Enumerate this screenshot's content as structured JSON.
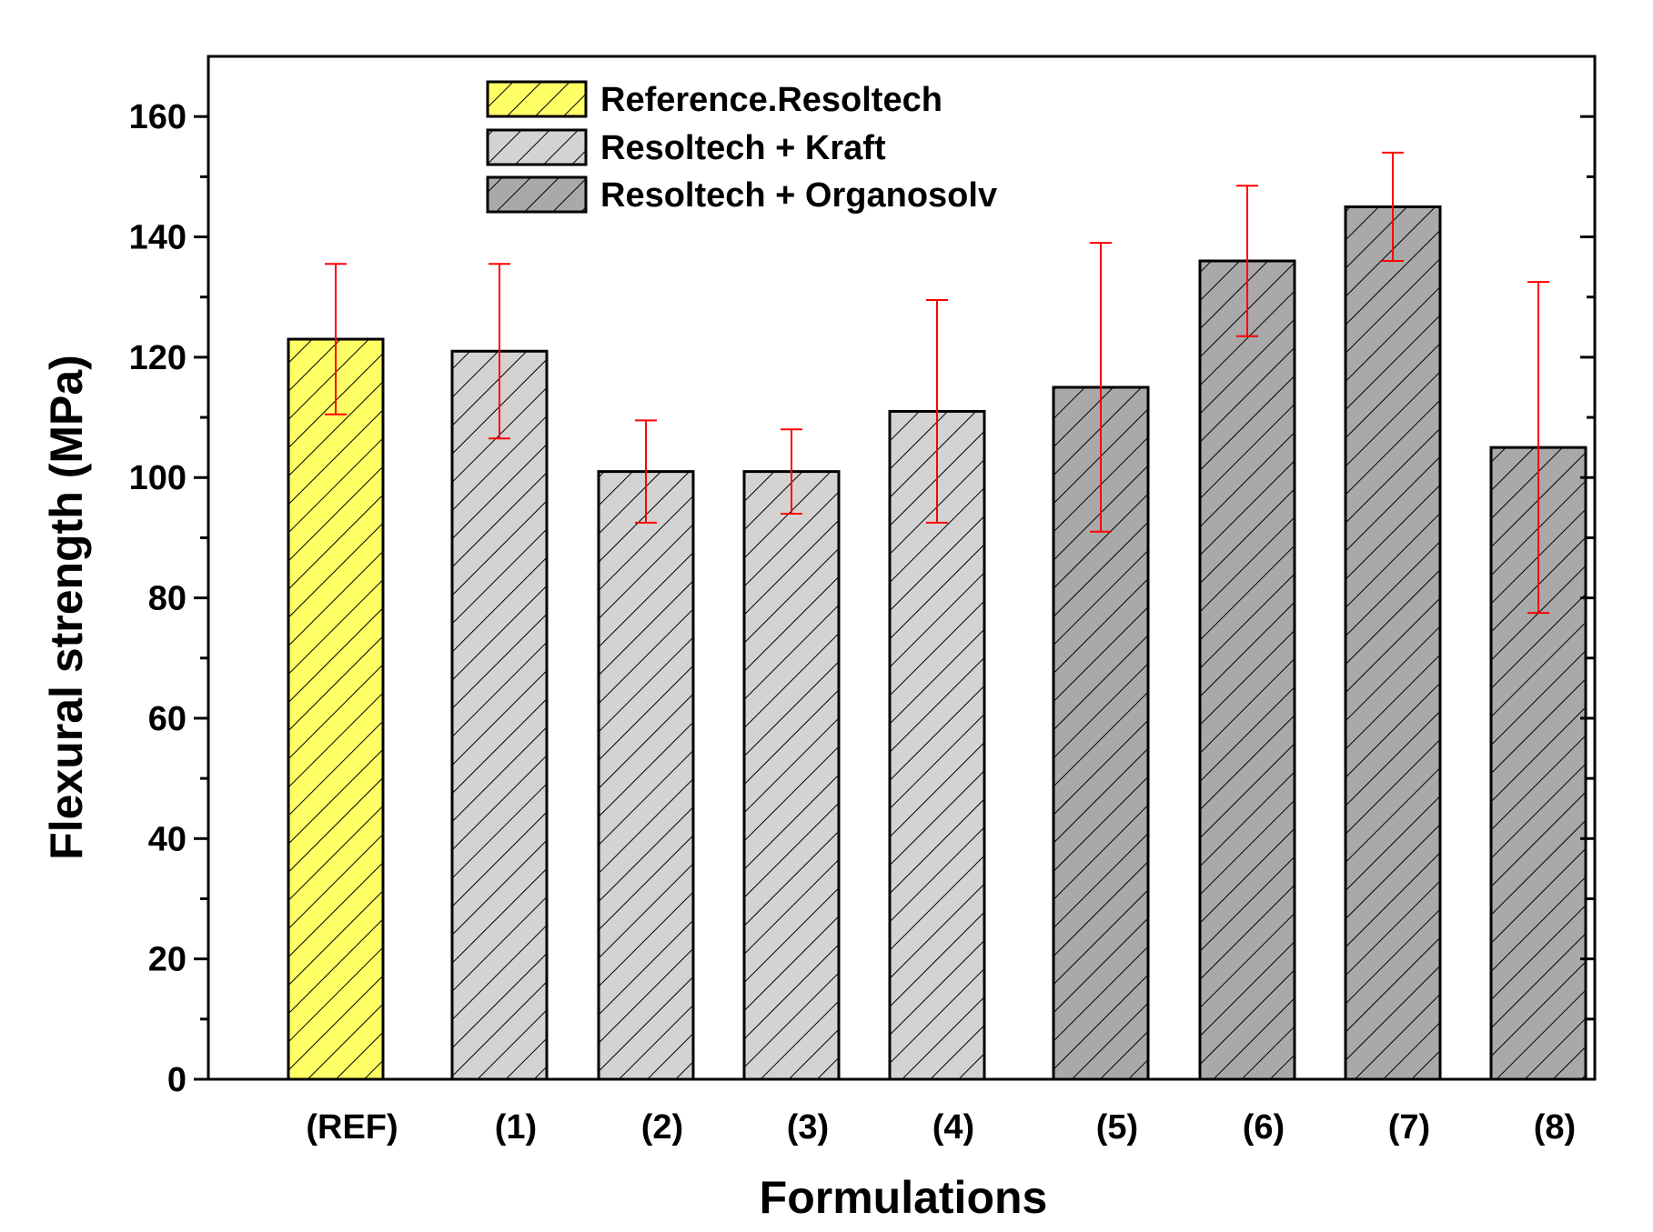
{
  "chart_data": {
    "type": "bar",
    "title": "",
    "xlabel": "Formulations",
    "ylabel": "Flexural strength (MPa)",
    "ylim": [
      0,
      170
    ],
    "yticks": [
      0,
      20,
      40,
      60,
      80,
      100,
      120,
      140,
      160
    ],
    "categories": [
      "(REF)",
      "(1)",
      "(2)",
      "(3)",
      "(4)",
      "(5)",
      "(6)",
      "(7)",
      "(8)"
    ],
    "values": [
      123,
      121,
      101,
      101,
      111,
      115,
      136,
      145,
      105
    ],
    "error_low": [
      110.5,
      106.5,
      92.5,
      94,
      92.5,
      91,
      123.5,
      136,
      77.5
    ],
    "error_high": [
      135.5,
      135.5,
      109.5,
      108,
      129.5,
      139,
      148.5,
      154,
      132.5
    ],
    "groups": [
      0,
      1,
      1,
      1,
      1,
      2,
      2,
      2,
      2
    ],
    "legend": [
      {
        "label": "Reference.Resoltech",
        "color": "#ffff66"
      },
      {
        "label": "Resoltech + Kraft",
        "color": "#d3d3d3"
      },
      {
        "label": "Resoltech + Organosolv",
        "color": "#a9a9a9"
      }
    ],
    "error_bar_color": "#ff0000",
    "legend_position": "top-center",
    "grid": false
  }
}
